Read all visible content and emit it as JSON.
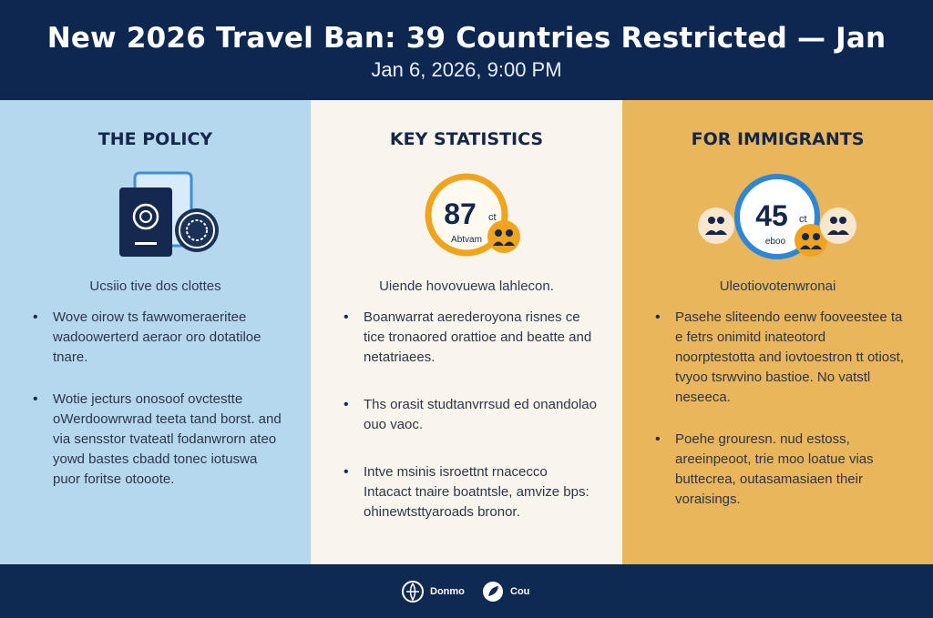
{
  "header": {
    "title": "New 2026 Travel Ban: 39 Countries Restricted — Jan",
    "date": "Jan 6, 2026, 9:00 PM"
  },
  "columns": [
    {
      "heading": "THE POLICY",
      "subtitle": "Ucsiio tive dos clottes",
      "bullets": [
        "Wove oirow ts fawwomeraeritee wadoowerterd aeraor oro dotatiloe tnare.",
        "Wotie jecturs onosoof ovctestte oWerdoowrwrad teeta tand borst. and via sensstor tvateatl fodanwrorn ateo yowd bastes cbadd tonec iotuswa puor foritse otooote."
      ],
      "illus": "passport-icon"
    },
    {
      "heading": "KEY STATISTICS",
      "subtitle": "Uiende hovovuewa lahlecon.",
      "stat_value": "87",
      "stat_suffix": "ct",
      "stat_caption": "Abtvam",
      "bullets": [
        "Boanwarrat aerederoyona risnes ce tice tronaored orattioe and beatte and netatriaees.",
        "Ths orasit studtanvrrsud ed onandolao ouo vaoc.",
        "Intve msinis isroettnt rnacecco Intacact tnaire boatntsle, amvize bps: ohinewtsttyaroads bronor."
      ]
    },
    {
      "heading": "FOR IMMIGRANTS",
      "subtitle": "Uleotiovotenwronai",
      "stat_value": "45",
      "stat_suffix": "ct",
      "stat_caption": "eboo",
      "bullets": [
        "Pasehe sliteendo eenw fooveestee ta e fetrs onimitd inateotord noorptestotta and iovtoestron tt otiost, tvyoo tsrwvino bastioe. No vatstl neseeca.",
        "Poehe grouresn. nud estoss, areeinpeoot, trie moo loatue vias buttecrea, outasamasiaen their voraisings."
      ]
    }
  ],
  "footer": {
    "item1_label": "Donmo",
    "item2_label": "Cou"
  },
  "colors": {
    "header_bg": "#0d2750",
    "left_bg": "#b6d8ee",
    "mid_bg": "#faf5ec",
    "right_bg": "#e9b65b",
    "accent_orange": "#f0a41e",
    "accent_blue": "#2e86d6"
  }
}
